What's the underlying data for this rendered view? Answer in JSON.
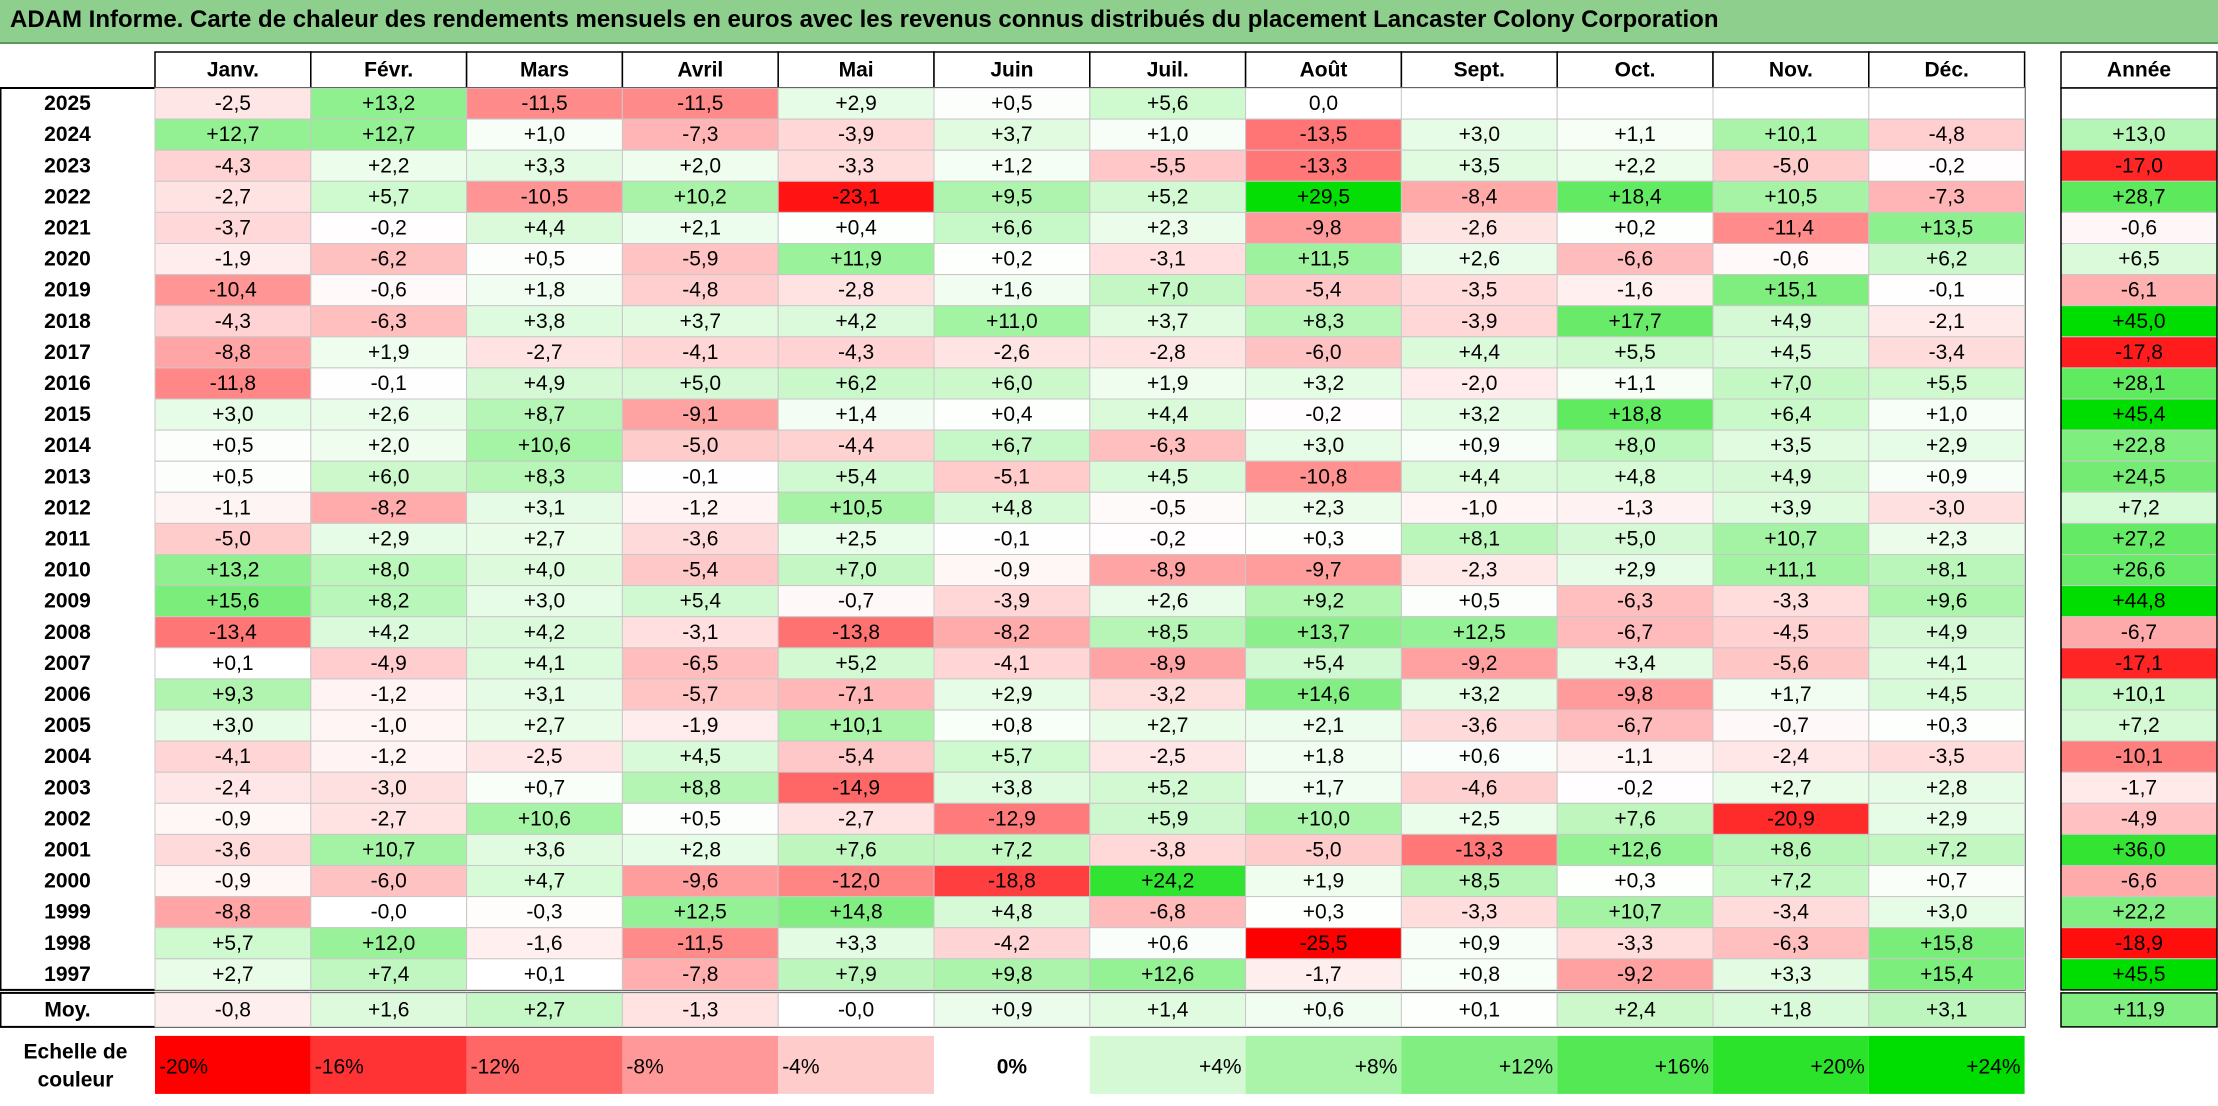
{
  "title": "ADAM Informe. Carte de chaleur des rendements mensuels en euros avec les revenus connus distribués du placement Lancaster Colony Corporation",
  "chart_data": {
    "type": "heatmap",
    "title": "ADAM Informe. Carte de chaleur des rendements mensuels en euros avec les revenus connus distribués du placement Lancaster Colony Corporation",
    "months": [
      "Janv.",
      "Févr.",
      "Mars",
      "Avril",
      "Mai",
      "Juin",
      "Juil.",
      "Août",
      "Sept.",
      "Oct.",
      "Nov.",
      "Déc."
    ],
    "year_column_label": "Année",
    "rows": [
      {
        "year": "2025",
        "values": [
          "-2,5",
          "+13,2",
          "-11,5",
          "-11,5",
          "+2,9",
          "+0,5",
          "+5,6",
          "0,0",
          "",
          "",
          "",
          ""
        ],
        "annual": ""
      },
      {
        "year": "2024",
        "values": [
          "+12,7",
          "+12,7",
          "+1,0",
          "-7,3",
          "-3,9",
          "+3,7",
          "+1,0",
          "-13,5",
          "+3,0",
          "+1,1",
          "+10,1",
          "-4,8"
        ],
        "annual": "+13,0"
      },
      {
        "year": "2023",
        "values": [
          "-4,3",
          "+2,2",
          "+3,3",
          "+2,0",
          "-3,3",
          "+1,2",
          "-5,5",
          "-13,3",
          "+3,5",
          "+2,2",
          "-5,0",
          "-0,2"
        ],
        "annual": "-17,0"
      },
      {
        "year": "2022",
        "values": [
          "-2,7",
          "+5,7",
          "-10,5",
          "+10,2",
          "-23,1",
          "+9,5",
          "+5,2",
          "+29,5",
          "-8,4",
          "+18,4",
          "+10,5",
          "-7,3"
        ],
        "annual": "+28,7"
      },
      {
        "year": "2021",
        "values": [
          "-3,7",
          "-0,2",
          "+4,4",
          "+2,1",
          "+0,4",
          "+6,6",
          "+2,3",
          "-9,8",
          "-2,6",
          "+0,2",
          "-11,4",
          "+13,5"
        ],
        "annual": "-0,6"
      },
      {
        "year": "2020",
        "values": [
          "-1,9",
          "-6,2",
          "+0,5",
          "-5,9",
          "+11,9",
          "+0,2",
          "-3,1",
          "+11,5",
          "+2,6",
          "-6,6",
          "-0,6",
          "+6,2"
        ],
        "annual": "+6,5"
      },
      {
        "year": "2019",
        "values": [
          "-10,4",
          "-0,6",
          "+1,8",
          "-4,8",
          "-2,8",
          "+1,6",
          "+7,0",
          "-5,4",
          "-3,5",
          "-1,6",
          "+15,1",
          "-0,1"
        ],
        "annual": "-6,1"
      },
      {
        "year": "2018",
        "values": [
          "-4,3",
          "-6,3",
          "+3,8",
          "+3,7",
          "+4,2",
          "+11,0",
          "+3,7",
          "+8,3",
          "-3,9",
          "+17,7",
          "+4,9",
          "-2,1"
        ],
        "annual": "+45,0"
      },
      {
        "year": "2017",
        "values": [
          "-8,8",
          "+1,9",
          "-2,7",
          "-4,1",
          "-4,3",
          "-2,6",
          "-2,8",
          "-6,0",
          "+4,4",
          "+5,5",
          "+4,5",
          "-3,4"
        ],
        "annual": "-17,8"
      },
      {
        "year": "2016",
        "values": [
          "-11,8",
          "-0,1",
          "+4,9",
          "+5,0",
          "+6,2",
          "+6,0",
          "+1,9",
          "+3,2",
          "-2,0",
          "+1,1",
          "+7,0",
          "+5,5"
        ],
        "annual": "+28,1"
      },
      {
        "year": "2015",
        "values": [
          "+3,0",
          "+2,6",
          "+8,7",
          "-9,1",
          "+1,4",
          "+0,4",
          "+4,4",
          "-0,2",
          "+3,2",
          "+18,8",
          "+6,4",
          "+1,0"
        ],
        "annual": "+45,4"
      },
      {
        "year": "2014",
        "values": [
          "+0,5",
          "+2,0",
          "+10,6",
          "-5,0",
          "-4,4",
          "+6,7",
          "-6,3",
          "+3,0",
          "+0,9",
          "+8,0",
          "+3,5",
          "+2,9"
        ],
        "annual": "+22,8"
      },
      {
        "year": "2013",
        "values": [
          "+0,5",
          "+6,0",
          "+8,3",
          "-0,1",
          "+5,4",
          "-5,1",
          "+4,5",
          "-10,8",
          "+4,4",
          "+4,8",
          "+4,9",
          "+0,9"
        ],
        "annual": "+24,5"
      },
      {
        "year": "2012",
        "values": [
          "-1,1",
          "-8,2",
          "+3,1",
          "-1,2",
          "+10,5",
          "+4,8",
          "-0,5",
          "+2,3",
          "-1,0",
          "-1,3",
          "+3,9",
          "-3,0"
        ],
        "annual": "+7,2"
      },
      {
        "year": "2011",
        "values": [
          "-5,0",
          "+2,9",
          "+2,7",
          "-3,6",
          "+2,5",
          "-0,1",
          "-0,2",
          "+0,3",
          "+8,1",
          "+5,0",
          "+10,7",
          "+2,3"
        ],
        "annual": "+27,2"
      },
      {
        "year": "2010",
        "values": [
          "+13,2",
          "+8,0",
          "+4,0",
          "-5,4",
          "+7,0",
          "-0,9",
          "-8,9",
          "-9,7",
          "-2,3",
          "+2,9",
          "+11,1",
          "+8,1"
        ],
        "annual": "+26,6"
      },
      {
        "year": "2009",
        "values": [
          "+15,6",
          "+8,2",
          "+3,0",
          "+5,4",
          "-0,7",
          "-3,9",
          "+2,6",
          "+9,2",
          "+0,5",
          "-6,3",
          "-3,3",
          "+9,6"
        ],
        "annual": "+44,8"
      },
      {
        "year": "2008",
        "values": [
          "-13,4",
          "+4,2",
          "+4,2",
          "-3,1",
          "-13,8",
          "-8,2",
          "+8,5",
          "+13,7",
          "+12,5",
          "-6,7",
          "-4,5",
          "+4,9"
        ],
        "annual": "-6,7"
      },
      {
        "year": "2007",
        "values": [
          "+0,1",
          "-4,9",
          "+4,1",
          "-6,5",
          "+5,2",
          "-4,1",
          "-8,9",
          "+5,4",
          "-9,2",
          "+3,4",
          "-5,6",
          "+4,1"
        ],
        "annual": "-17,1"
      },
      {
        "year": "2006",
        "values": [
          "+9,3",
          "-1,2",
          "+3,1",
          "-5,7",
          "-7,1",
          "+2,9",
          "-3,2",
          "+14,6",
          "+3,2",
          "-9,8",
          "+1,7",
          "+4,5"
        ],
        "annual": "+10,1"
      },
      {
        "year": "2005",
        "values": [
          "+3,0",
          "-1,0",
          "+2,7",
          "-1,9",
          "+10,1",
          "+0,8",
          "+2,7",
          "+2,1",
          "-3,6",
          "-6,7",
          "-0,7",
          "+0,3"
        ],
        "annual": "+7,2"
      },
      {
        "year": "2004",
        "values": [
          "-4,1",
          "-1,2",
          "-2,5",
          "+4,5",
          "-5,4",
          "+5,7",
          "-2,5",
          "+1,8",
          "+0,6",
          "-1,1",
          "-2,4",
          "-3,5"
        ],
        "annual": "-10,1"
      },
      {
        "year": "2003",
        "values": [
          "-2,4",
          "-3,0",
          "+0,7",
          "+8,8",
          "-14,9",
          "+3,8",
          "+5,2",
          "+1,7",
          "-4,6",
          "-0,2",
          "+2,7",
          "+2,8"
        ],
        "annual": "-1,7"
      },
      {
        "year": "2002",
        "values": [
          "-0,9",
          "-2,7",
          "+10,6",
          "+0,5",
          "-2,7",
          "-12,9",
          "+5,9",
          "+10,0",
          "+2,5",
          "+7,6",
          "-20,9",
          "+2,9"
        ],
        "annual": "-4,9"
      },
      {
        "year": "2001",
        "values": [
          "-3,6",
          "+10,7",
          "+3,6",
          "+2,8",
          "+7,6",
          "+7,2",
          "-3,8",
          "-5,0",
          "-13,3",
          "+12,6",
          "+8,6",
          "+7,2"
        ],
        "annual": "+36,0"
      },
      {
        "year": "2000",
        "values": [
          "-0,9",
          "-6,0",
          "+4,7",
          "-9,6",
          "-12,0",
          "-18,8",
          "+24,2",
          "+1,9",
          "+8,5",
          "+0,3",
          "+7,2",
          "+0,7"
        ],
        "annual": "-6,6"
      },
      {
        "year": "1999",
        "values": [
          "-8,8",
          "-0,0",
          "-0,3",
          "+12,5",
          "+14,8",
          "+4,8",
          "-6,8",
          "+0,3",
          "-3,3",
          "+10,7",
          "-3,4",
          "+3,0"
        ],
        "annual": "+22,2"
      },
      {
        "year": "1998",
        "values": [
          "+5,7",
          "+12,0",
          "-1,6",
          "-11,5",
          "+3,3",
          "-4,2",
          "+0,6",
          "-25,5",
          "+0,9",
          "-3,3",
          "-6,3",
          "+15,8"
        ],
        "annual": "-18,9"
      },
      {
        "year": "1997",
        "values": [
          "+2,7",
          "+7,4",
          "+0,1",
          "-7,8",
          "+7,9",
          "+9,8",
          "+12,6",
          "-1,7",
          "+0,8",
          "-9,2",
          "+3,3",
          "+15,4"
        ],
        "annual": "+45,5"
      }
    ],
    "average": {
      "label": "Moy.",
      "values": [
        "-0,8",
        "+1,6",
        "+2,7",
        "-1,3",
        "-0,0",
        "+0,9",
        "+1,4",
        "+0,6",
        "+0,1",
        "+2,4",
        "+1,8",
        "+3,1"
      ],
      "annual": "+11,9"
    },
    "color_scale": {
      "label_line1": "Echelle de",
      "label_line2": "couleur",
      "stops": [
        "-20%",
        "-16%",
        "-12%",
        "-8%",
        "-4%",
        "0%",
        "+4%",
        "+8%",
        "+12%",
        "+16%",
        "+20%",
        "+24%"
      ],
      "negative_color": "#ff0000",
      "neutral_color": "#ffffff",
      "positive_color": "#00dd00"
    }
  }
}
